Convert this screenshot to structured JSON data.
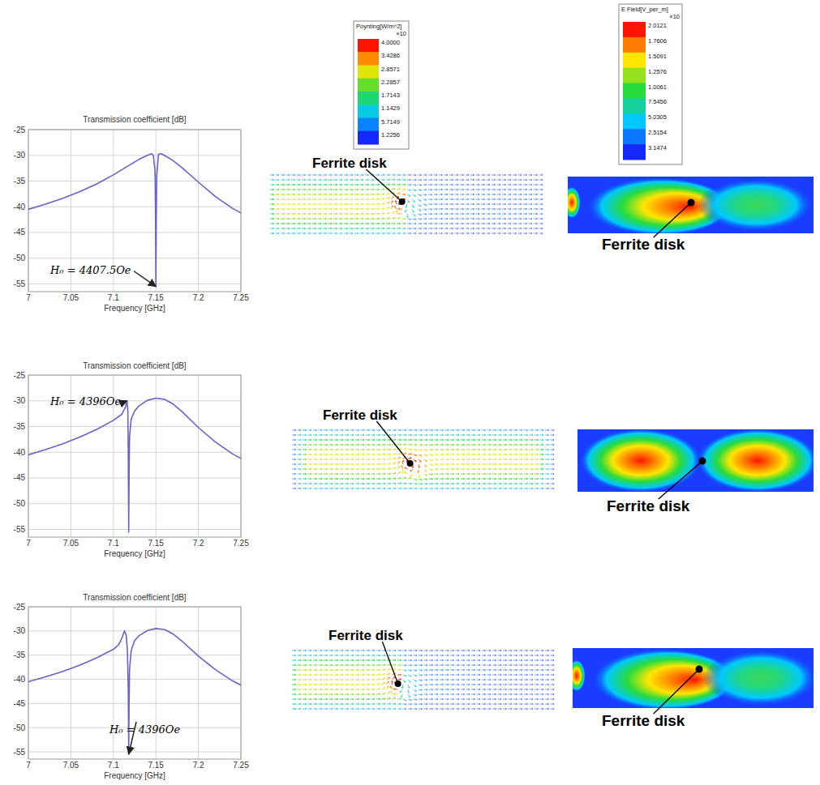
{
  "chart_data": [
    {
      "type": "line",
      "title": "Transmission coefficient [dB]",
      "x_label": "Frequency [GHz]",
      "x": [
        7,
        7.02,
        7.04,
        7.06,
        7.08,
        7.1,
        7.12,
        7.13,
        7.14,
        7.145,
        7.147,
        7.149,
        7.1495,
        7.15,
        7.1505,
        7.151,
        7.153,
        7.156,
        7.16,
        7.17,
        7.18,
        7.2,
        7.22,
        7.24,
        7.25
      ],
      "series": [
        {
          "color": "#6a62c8",
          "values": [
            -40.5,
            -39.5,
            -38.4,
            -37.1,
            -35.6,
            -33.8,
            -31.8,
            -30.8,
            -30.0,
            -29.7,
            -30.0,
            -33,
            -40,
            -55.5,
            -42,
            -34,
            -29.8,
            -29.7,
            -30.0,
            -31.0,
            -32.3,
            -35.2,
            -38.0,
            -40.3,
            -41.2
          ]
        }
      ],
      "xlim": [
        7,
        7.25
      ],
      "xticks": [
        7,
        7.05,
        7.1,
        7.15,
        7.2,
        7.25
      ],
      "ylim": [
        -56.5,
        -25
      ],
      "yticks": [
        -55,
        -50,
        -45,
        -40,
        -35,
        -30,
        -25
      ],
      "grid": true,
      "annotation": {
        "text": "H₀ = 4407.5Oe",
        "x": 7.15,
        "y": -55.5
      }
    },
    {
      "type": "line",
      "title": "Transmission coefficient [dB]",
      "x_label": "Frequency [GHz]",
      "x": [
        7,
        7.02,
        7.04,
        7.06,
        7.08,
        7.1,
        7.11,
        7.114,
        7.116,
        7.117,
        7.1175,
        7.118,
        7.1185,
        7.119,
        7.121,
        7.125,
        7.13,
        7.14,
        7.15,
        7.16,
        7.17,
        7.18,
        7.2,
        7.22,
        7.24,
        7.25
      ],
      "series": [
        {
          "color": "#6a62c8",
          "values": [
            -40.5,
            -39.5,
            -38.4,
            -37.1,
            -35.6,
            -33.8,
            -32.6,
            -31.3,
            -30.0,
            -32,
            -40,
            -55.5,
            -44,
            -37,
            -33.5,
            -32.0,
            -31.0,
            -29.9,
            -29.5,
            -29.7,
            -30.6,
            -32.0,
            -35.2,
            -38.0,
            -40.3,
            -41.2
          ]
        }
      ],
      "xlim": [
        7,
        7.25
      ],
      "xticks": [
        7,
        7.05,
        7.1,
        7.15,
        7.2,
        7.25
      ],
      "ylim": [
        -56.5,
        -25
      ],
      "yticks": [
        -55,
        -50,
        -45,
        -40,
        -35,
        -30,
        -25
      ],
      "grid": true,
      "annotation": {
        "text": "H₀ = 4396Oe",
        "x": 7.116,
        "y": -30.0
      }
    },
    {
      "type": "line",
      "title": "Transmission coefficient [dB]",
      "x_label": "Frequency [GHz]",
      "x": [
        7,
        7.02,
        7.04,
        7.06,
        7.08,
        7.1,
        7.106,
        7.11,
        7.113,
        7.115,
        7.1165,
        7.1175,
        7.118,
        7.1185,
        7.119,
        7.121,
        7.125,
        7.13,
        7.14,
        7.15,
        7.16,
        7.17,
        7.18,
        7.2,
        7.22,
        7.24,
        7.25
      ],
      "series": [
        {
          "color": "#6a62c8",
          "values": [
            -40.5,
            -39.5,
            -38.4,
            -37.1,
            -35.6,
            -33.8,
            -32.9,
            -31.5,
            -30.0,
            -30.8,
            -34,
            -42,
            -55.5,
            -45,
            -38,
            -34,
            -32.0,
            -31.0,
            -29.9,
            -29.5,
            -29.7,
            -30.6,
            -32.0,
            -35.2,
            -38.0,
            -40.3,
            -41.2
          ]
        }
      ],
      "xlim": [
        7,
        7.25
      ],
      "xticks": [
        7,
        7.05,
        7.1,
        7.15,
        7.2,
        7.25
      ],
      "ylim": [
        -56.5,
        -25
      ],
      "yticks": [
        -55,
        -50,
        -45,
        -40,
        -35,
        -30,
        -25
      ],
      "grid": true,
      "annotation": {
        "text": "H₀ = 4396Oe",
        "x": 7.118,
        "y": -55.5
      }
    }
  ],
  "colorbars": [
    {
      "title": "Poynting[W/m^2]",
      "exponent_label": "×10",
      "labels": [
        "4.0000",
        "3.4286",
        "2.8571",
        "2.2857",
        "1.7143",
        "1.1429",
        "5.7149",
        "1.2256"
      ]
    },
    {
      "title": "E Field[V_per_m]",
      "exponent_label": "×10",
      "labels": [
        "2.0121",
        "1.7606",
        "1.5091",
        "1.2576",
        "1.0061",
        "7.5456",
        "5.0305",
        "2.5154",
        "3.1474"
      ]
    }
  ],
  "field_rows": [
    {
      "poynting_label": "Ferrite disk",
      "efield_label": "Ferrite disk"
    },
    {
      "poynting_label": "Ferrite disk",
      "efield_label": "Ferrite disk"
    },
    {
      "poynting_label": "Ferrite disk",
      "efield_label": "Ferrite disk"
    }
  ]
}
